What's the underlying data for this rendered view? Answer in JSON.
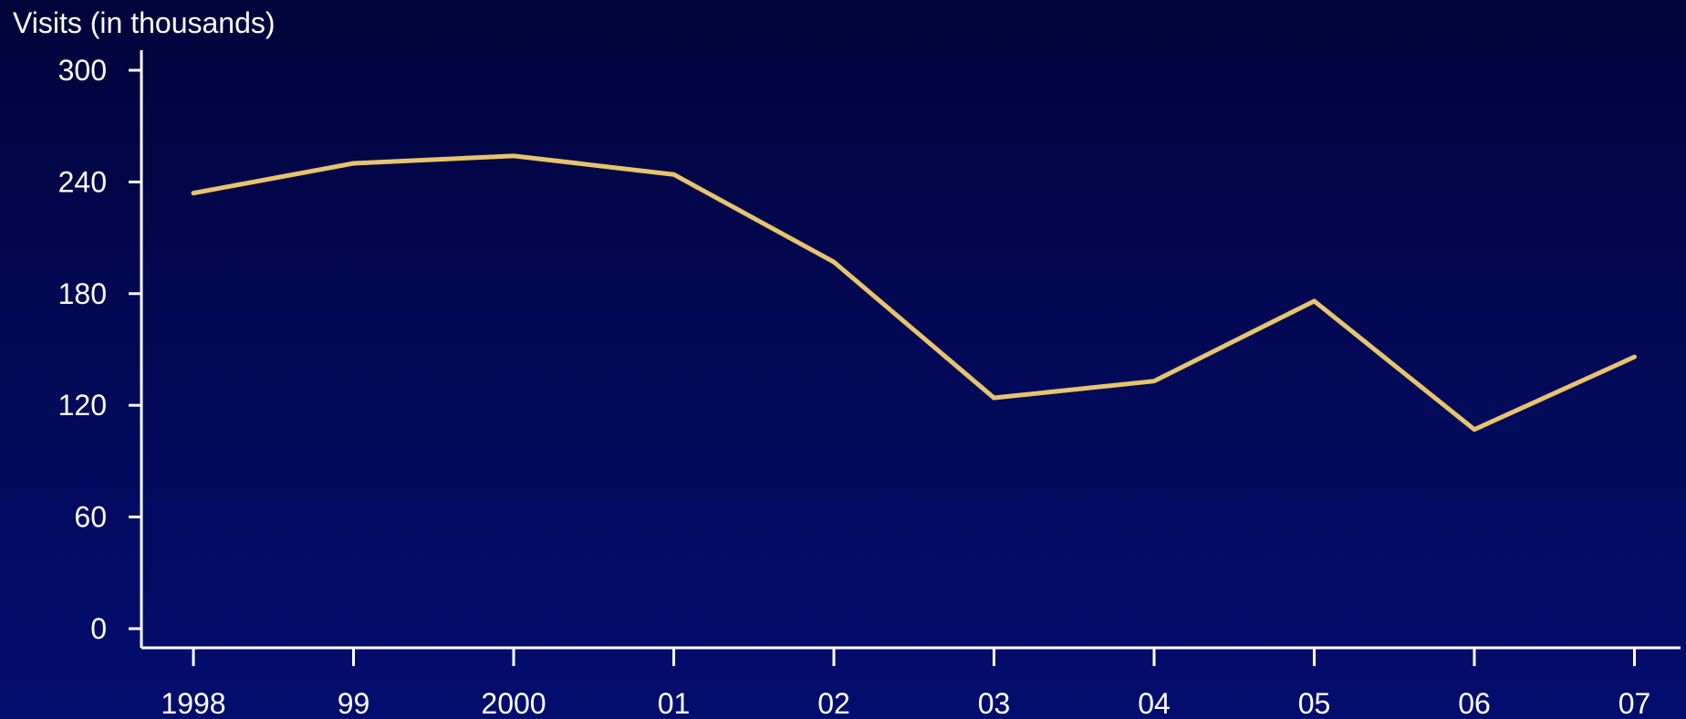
{
  "chart_data": {
    "type": "line",
    "title": "",
    "ylabel": "Visits (in thousands)",
    "xlabel": "",
    "categories": [
      "1998",
      "99",
      "2000",
      "01",
      "02",
      "03",
      "04",
      "05",
      "06",
      "07"
    ],
    "series": [
      {
        "values": [
          234,
          250,
          254,
          244,
          197,
          124,
          133,
          176,
          107,
          146
        ],
        "color": "#e8c46e"
      }
    ],
    "ylim": [
      0,
      300
    ],
    "yticks": [
      0,
      60,
      120,
      180,
      240,
      300
    ],
    "ytick_labels": [
      "0",
      "60",
      "120",
      "180",
      "240",
      "300"
    ],
    "grid": false,
    "legend": "none",
    "colors": {
      "axis": "#ffffff",
      "text": "#ffffff",
      "line": "#e8c46e"
    }
  }
}
